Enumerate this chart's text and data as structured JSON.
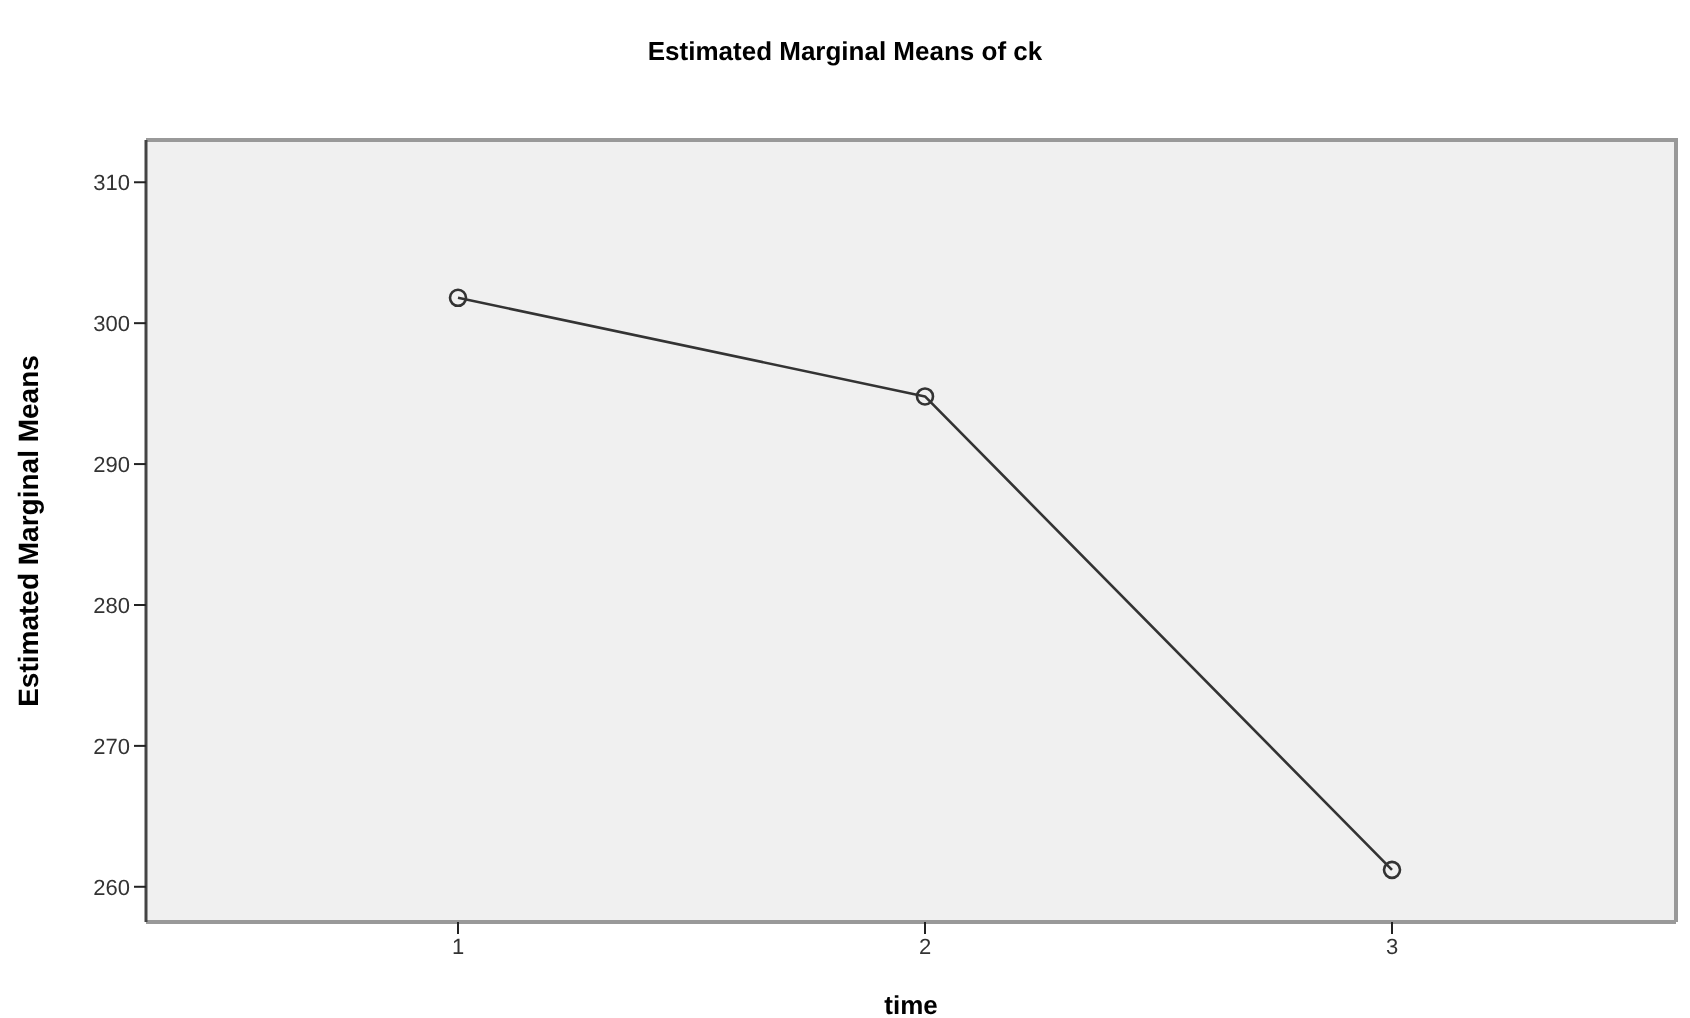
{
  "chart_data": {
    "type": "line",
    "title": "Estimated Marginal Means of ck",
    "xlabel": "time",
    "ylabel": "Estimated Marginal Means",
    "categories": [
      "1",
      "2",
      "3"
    ],
    "series": [
      {
        "color": "#333333",
        "values": [
          301.8,
          294.8,
          261.2
        ]
      }
    ],
    "ylim": [
      257.5,
      313
    ],
    "yticks": [
      260,
      270,
      280,
      290,
      300,
      310
    ],
    "grid": false,
    "legend": false,
    "marker": "circle",
    "line_style": "solid"
  }
}
